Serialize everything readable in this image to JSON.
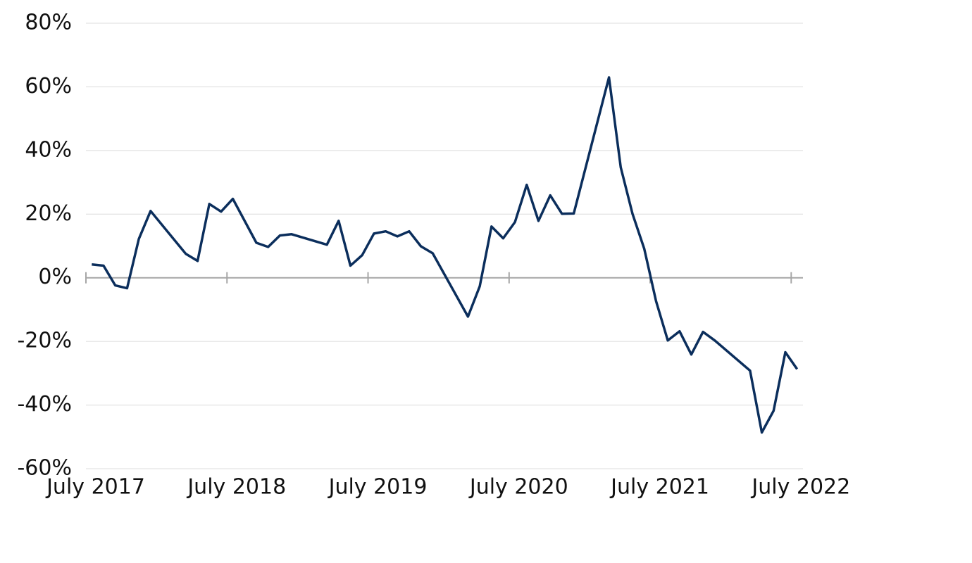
{
  "chart_data": {
    "type": "line",
    "x": [
      "2017-07",
      "2017-08",
      "2017-09",
      "2017-10",
      "2017-11",
      "2017-12",
      "2018-03",
      "2018-04",
      "2018-05",
      "2018-06",
      "2018-07",
      "2018-09",
      "2018-10",
      "2018-11",
      "2018-12",
      "2019-03",
      "2019-04",
      "2019-05",
      "2019-06",
      "2019-07",
      "2019-08",
      "2019-09",
      "2019-10",
      "2019-11",
      "2019-12",
      "2020-03",
      "2020-04",
      "2020-05",
      "2020-06",
      "2020-07",
      "2020-08",
      "2020-09",
      "2020-10",
      "2020-11",
      "2020-12",
      "2021-03",
      "2021-04",
      "2021-05",
      "2021-06",
      "2021-07",
      "2021-08",
      "2021-09",
      "2021-10",
      "2021-11",
      "2021-12",
      "2022-03",
      "2022-04",
      "2022-05",
      "2022-06",
      "2022-07"
    ],
    "series": [
      {
        "color": "#0b2e5c",
        "values": [
          4.2,
          3.8,
          -2.4,
          -3.3,
          12.2,
          21,
          7.5,
          5.3,
          23.2,
          20.8,
          24.8,
          11,
          9.7,
          13.3,
          13.7,
          10.4,
          17.9,
          3.8,
          7.1,
          13.9,
          14.6,
          13,
          14.6,
          9.9,
          7.7,
          -12.2,
          -2.7,
          16.1,
          12.4,
          17.5,
          29.2,
          17.9,
          25.9,
          20.1,
          20.2,
          63,
          34.7,
          20.1,
          9.1,
          -7.3,
          -19.7,
          -16.8,
          -24.1,
          -17,
          -19.7,
          -29.2,
          -48.6,
          -41.8,
          -23.4,
          -28.7
        ]
      }
    ],
    "xlim": [
      "2017-07",
      "2022-08"
    ],
    "xticks": [
      {
        "value": "2017-07",
        "label": "July 2017"
      },
      {
        "value": "2018-07",
        "label": "July 2018"
      },
      {
        "value": "2019-07",
        "label": "July 2019"
      },
      {
        "value": "2020-07",
        "label": "July 2020"
      },
      {
        "value": "2021-07",
        "label": "July 2021"
      },
      {
        "value": "2022-07",
        "label": "July 2022"
      }
    ],
    "ylim": [
      -60,
      80
    ],
    "yticks": [
      {
        "value": -60,
        "label": "-60%"
      },
      {
        "value": -40,
        "label": "-40%"
      },
      {
        "value": -20,
        "label": "-20%"
      },
      {
        "value": 0,
        "label": "0%"
      },
      {
        "value": 20,
        "label": "20%"
      },
      {
        "value": 40,
        "label": "40%"
      },
      {
        "value": 60,
        "label": "60%"
      },
      {
        "value": 80,
        "label": "80%"
      }
    ],
    "grid": true
  }
}
